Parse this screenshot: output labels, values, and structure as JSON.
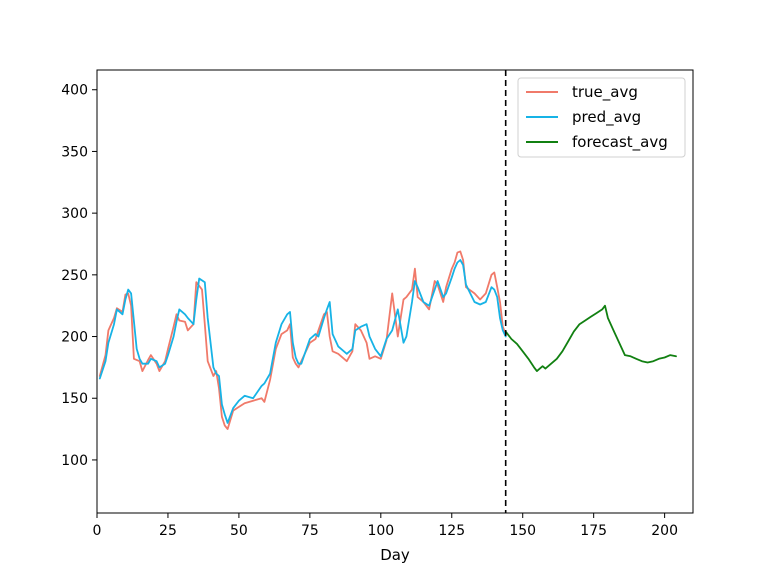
{
  "chart_data": {
    "type": "line",
    "title": "",
    "xlabel": "Day",
    "ylabel": "",
    "xlim": [
      0,
      210
    ],
    "ylim": [
      57,
      416
    ],
    "x_ticks": [
      0,
      25,
      50,
      75,
      100,
      125,
      150,
      175,
      200
    ],
    "y_ticks": [
      100,
      150,
      200,
      250,
      300,
      350,
      400
    ],
    "grid": false,
    "legend_position": "top-right",
    "vline": {
      "x": 144,
      "style": "dashed",
      "color": "#000000"
    },
    "series": [
      {
        "name": "true_avg",
        "color": "#f07a6a",
        "points": [
          [
            1,
            168
          ],
          [
            3,
            185
          ],
          [
            4,
            205
          ],
          [
            6,
            215
          ],
          [
            7,
            223
          ],
          [
            9,
            220
          ],
          [
            10,
            234
          ],
          [
            11,
            235
          ],
          [
            12,
            225
          ],
          [
            13,
            182
          ],
          [
            15,
            180
          ],
          [
            16,
            172
          ],
          [
            18,
            181
          ],
          [
            19,
            185
          ],
          [
            21,
            178
          ],
          [
            22,
            172
          ],
          [
            24,
            180
          ],
          [
            25,
            190
          ],
          [
            27,
            208
          ],
          [
            28,
            218
          ],
          [
            29,
            213
          ],
          [
            31,
            212
          ],
          [
            32,
            205
          ],
          [
            34,
            210
          ],
          [
            35,
            244
          ],
          [
            37,
            238
          ],
          [
            38,
            210
          ],
          [
            39,
            180
          ],
          [
            41,
            168
          ],
          [
            42,
            172
          ],
          [
            43,
            158
          ],
          [
            44,
            135
          ],
          [
            45,
            128
          ],
          [
            46,
            125
          ],
          [
            48,
            140
          ],
          [
            50,
            143
          ],
          [
            52,
            146
          ],
          [
            55,
            148
          ],
          [
            58,
            150
          ],
          [
            59,
            147
          ],
          [
            61,
            165
          ],
          [
            63,
            190
          ],
          [
            65,
            202
          ],
          [
            67,
            205
          ],
          [
            68,
            210
          ],
          [
            69,
            183
          ],
          [
            70,
            178
          ],
          [
            71,
            175
          ],
          [
            72,
            180
          ],
          [
            75,
            195
          ],
          [
            77,
            198
          ],
          [
            78,
            205
          ],
          [
            80,
            218
          ],
          [
            81,
            220
          ],
          [
            82,
            200
          ],
          [
            83,
            188
          ],
          [
            85,
            186
          ],
          [
            88,
            180
          ],
          [
            90,
            188
          ],
          [
            91,
            210
          ],
          [
            93,
            205
          ],
          [
            95,
            195
          ],
          [
            96,
            182
          ],
          [
            98,
            184
          ],
          [
            100,
            182
          ],
          [
            102,
            197
          ],
          [
            104,
            235
          ],
          [
            106,
            200
          ],
          [
            108,
            230
          ],
          [
            109,
            232
          ],
          [
            111,
            238
          ],
          [
            112,
            255
          ],
          [
            113,
            232
          ],
          [
            115,
            228
          ],
          [
            117,
            222
          ],
          [
            119,
            245
          ],
          [
            120,
            242
          ],
          [
            122,
            228
          ],
          [
            123,
            240
          ],
          [
            125,
            255
          ],
          [
            126,
            260
          ],
          [
            127,
            268
          ],
          [
            128,
            269
          ],
          [
            129,
            262
          ],
          [
            130,
            240
          ],
          [
            133,
            235
          ],
          [
            135,
            230
          ],
          [
            137,
            235
          ],
          [
            139,
            250
          ],
          [
            140,
            252
          ],
          [
            141,
            240
          ],
          [
            142,
            228
          ],
          [
            143,
            208
          ],
          [
            144,
            202
          ]
        ]
      },
      {
        "name": "pred_avg",
        "color": "#17b3e6",
        "points": [
          [
            1,
            166
          ],
          [
            3,
            180
          ],
          [
            4,
            195
          ],
          [
            6,
            210
          ],
          [
            7,
            222
          ],
          [
            9,
            218
          ],
          [
            10,
            230
          ],
          [
            11,
            238
          ],
          [
            12,
            235
          ],
          [
            14,
            190
          ],
          [
            15,
            182
          ],
          [
            16,
            178
          ],
          [
            18,
            178
          ],
          [
            19,
            182
          ],
          [
            21,
            180
          ],
          [
            22,
            175
          ],
          [
            24,
            178
          ],
          [
            25,
            185
          ],
          [
            27,
            200
          ],
          [
            28,
            212
          ],
          [
            29,
            222
          ],
          [
            31,
            218
          ],
          [
            32,
            215
          ],
          [
            34,
            210
          ],
          [
            35,
            230
          ],
          [
            36,
            247
          ],
          [
            38,
            244
          ],
          [
            39,
            215
          ],
          [
            41,
            175
          ],
          [
            42,
            170
          ],
          [
            43,
            168
          ],
          [
            44,
            145
          ],
          [
            45,
            137
          ],
          [
            46,
            130
          ],
          [
            48,
            142
          ],
          [
            50,
            148
          ],
          [
            52,
            152
          ],
          [
            55,
            150
          ],
          [
            58,
            160
          ],
          [
            59,
            162
          ],
          [
            61,
            170
          ],
          [
            63,
            195
          ],
          [
            65,
            210
          ],
          [
            67,
            218
          ],
          [
            68,
            220
          ],
          [
            69,
            195
          ],
          [
            70,
            183
          ],
          [
            71,
            178
          ],
          [
            72,
            178
          ],
          [
            75,
            198
          ],
          [
            77,
            202
          ],
          [
            78,
            200
          ],
          [
            80,
            215
          ],
          [
            81,
            222
          ],
          [
            82,
            228
          ],
          [
            83,
            202
          ],
          [
            85,
            192
          ],
          [
            88,
            186
          ],
          [
            90,
            190
          ],
          [
            91,
            205
          ],
          [
            93,
            208
          ],
          [
            95,
            210
          ],
          [
            96,
            200
          ],
          [
            98,
            190
          ],
          [
            100,
            184
          ],
          [
            102,
            198
          ],
          [
            104,
            205
          ],
          [
            106,
            222
          ],
          [
            108,
            195
          ],
          [
            109,
            200
          ],
          [
            111,
            228
          ],
          [
            112,
            245
          ],
          [
            113,
            240
          ],
          [
            115,
            228
          ],
          [
            117,
            225
          ],
          [
            119,
            238
          ],
          [
            120,
            245
          ],
          [
            122,
            232
          ],
          [
            123,
            235
          ],
          [
            125,
            248
          ],
          [
            126,
            255
          ],
          [
            127,
            260
          ],
          [
            128,
            262
          ],
          [
            129,
            258
          ],
          [
            130,
            242
          ],
          [
            133,
            228
          ],
          [
            135,
            226
          ],
          [
            137,
            228
          ],
          [
            139,
            240
          ],
          [
            140,
            238
          ],
          [
            141,
            232
          ],
          [
            142,
            215
          ],
          [
            143,
            205
          ],
          [
            144,
            200
          ]
        ]
      },
      {
        "name": "forecast_avg",
        "color": "#118011",
        "points": [
          [
            144,
            204
          ],
          [
            146,
            198
          ],
          [
            148,
            194
          ],
          [
            150,
            188
          ],
          [
            152,
            182
          ],
          [
            154,
            175
          ],
          [
            155,
            172
          ],
          [
            157,
            176
          ],
          [
            158,
            174
          ],
          [
            160,
            178
          ],
          [
            162,
            182
          ],
          [
            164,
            188
          ],
          [
            166,
            196
          ],
          [
            168,
            204
          ],
          [
            170,
            210
          ],
          [
            172,
            213
          ],
          [
            174,
            216
          ],
          [
            176,
            219
          ],
          [
            178,
            222
          ],
          [
            179,
            225
          ],
          [
            180,
            215
          ],
          [
            182,
            205
          ],
          [
            184,
            195
          ],
          [
            186,
            185
          ],
          [
            188,
            184
          ],
          [
            190,
            182
          ],
          [
            192,
            180
          ],
          [
            194,
            179
          ],
          [
            196,
            180
          ],
          [
            198,
            182
          ],
          [
            200,
            183
          ],
          [
            202,
            185
          ],
          [
            204,
            184
          ]
        ]
      }
    ]
  }
}
